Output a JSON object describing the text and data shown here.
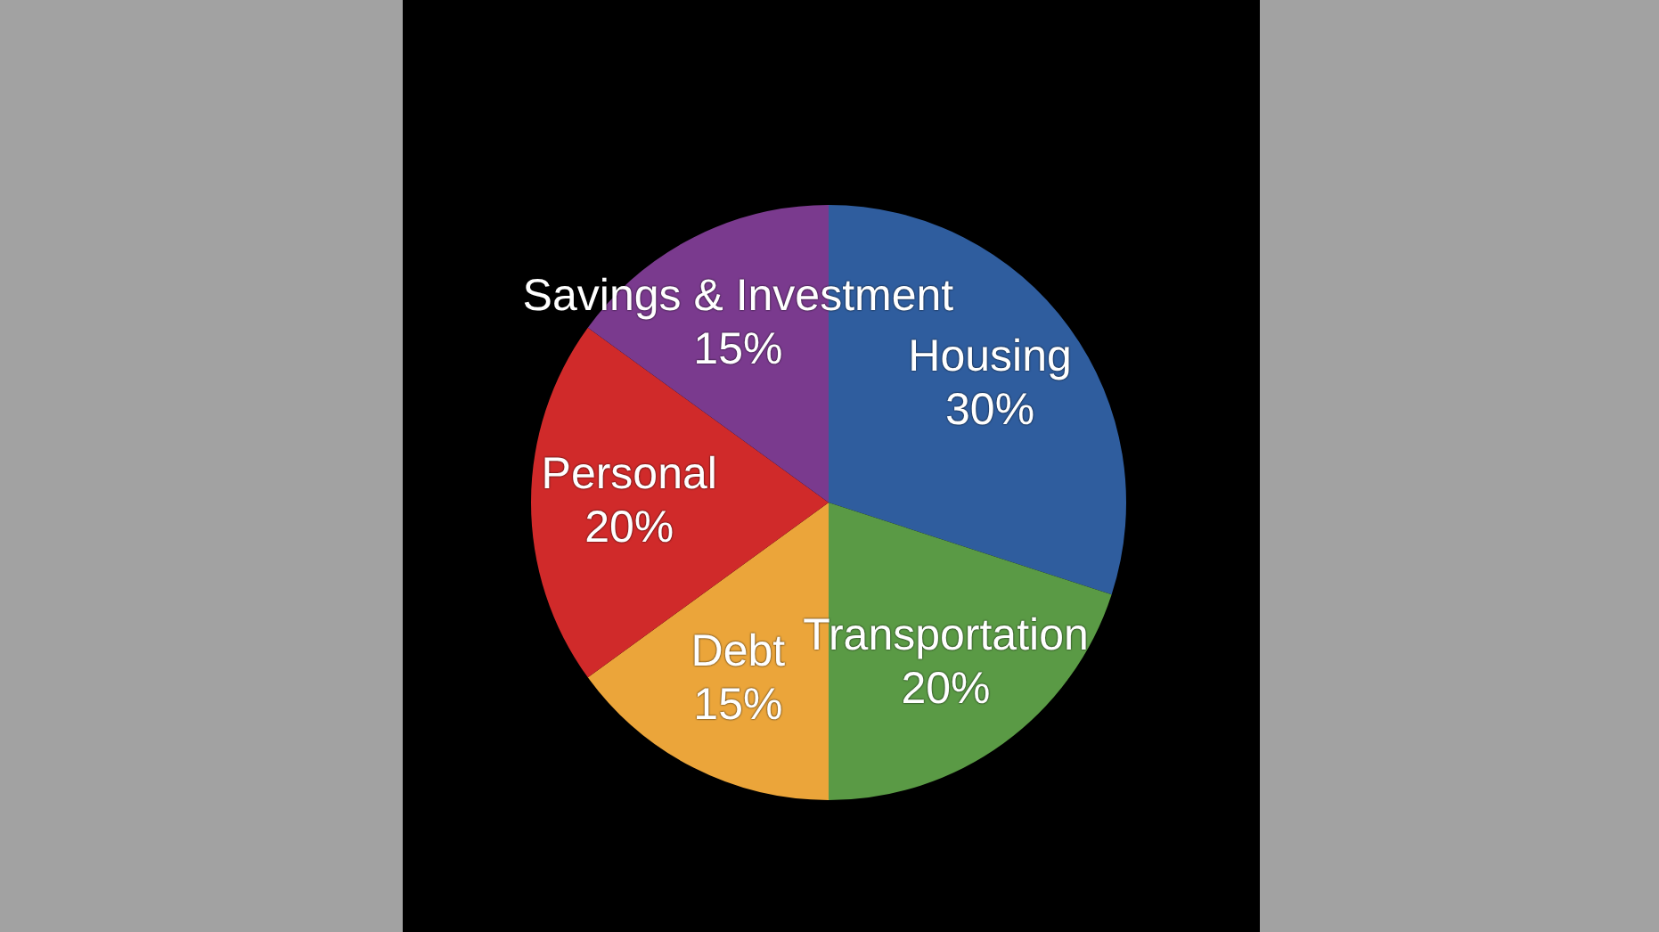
{
  "chart_data": {
    "type": "pie",
    "categories": [
      "Housing",
      "Transportation",
      "Debt",
      "Personal",
      "Savings & Investment"
    ],
    "values": [
      30,
      20,
      15,
      20,
      15
    ],
    "colors": [
      "#2f5d9e",
      "#5a9a45",
      "#eba53a",
      "#d02a2a",
      "#7a3a8e"
    ],
    "value_labels": [
      "30%",
      "20%",
      "15%",
      "20%",
      "15%"
    ]
  }
}
